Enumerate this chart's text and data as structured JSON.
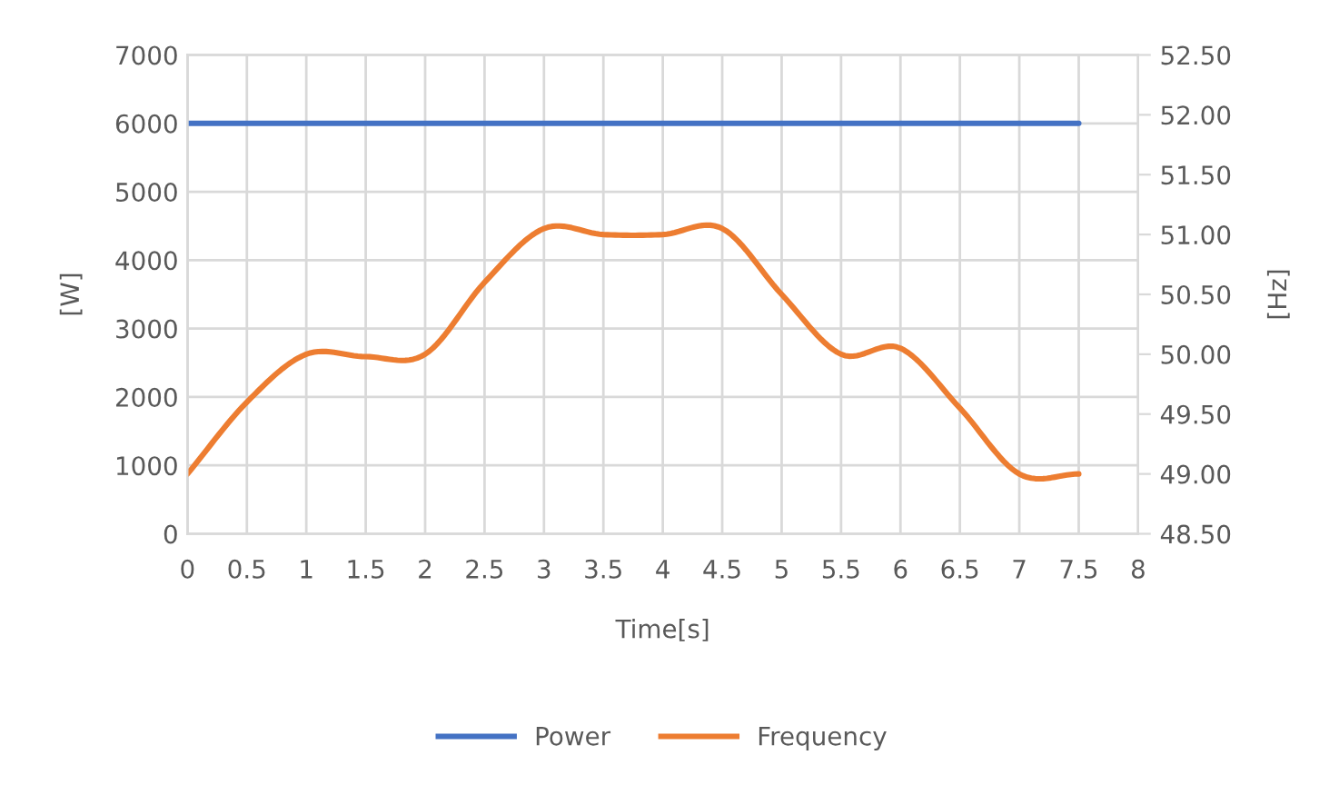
{
  "chart_data": {
    "type": "line",
    "xlabel": "Time[s]",
    "ylabel": "[W]",
    "y2label": "[Hz]",
    "x": [
      0,
      0.5,
      1,
      1.5,
      2,
      2.5,
      3,
      3.5,
      4,
      4.5,
      5,
      5.5,
      6,
      6.5,
      7,
      7.5
    ],
    "series": [
      {
        "name": "Power",
        "color": "#4472c4",
        "axis": "y",
        "values": [
          6000,
          6000,
          6000,
          6000,
          6000,
          6000,
          6000,
          6000,
          6000,
          6000,
          6000,
          6000,
          6000,
          6000,
          6000,
          6000
        ]
      },
      {
        "name": "Frequency",
        "color": "#ed7d31",
        "axis": "y2",
        "values": [
          49.0,
          49.6,
          50.0,
          49.98,
          50.0,
          50.6,
          51.05,
          51.0,
          51.0,
          51.05,
          50.5,
          50.0,
          50.05,
          49.55,
          49.0,
          49.0
        ]
      }
    ],
    "xlim": [
      0,
      8
    ],
    "xticks": [
      0,
      0.5,
      1,
      1.5,
      2,
      2.5,
      3,
      3.5,
      4,
      4.5,
      5,
      5.5,
      6,
      6.5,
      7,
      7.5,
      8
    ],
    "ylim": [
      0,
      7000
    ],
    "yticks": [
      0,
      1000,
      2000,
      3000,
      4000,
      5000,
      6000,
      7000
    ],
    "y2lim": [
      48.5,
      52.5
    ],
    "y2ticks": [
      {
        "value": 48.5,
        "label": "48.50"
      },
      {
        "value": 49.0,
        "label": "49.00"
      },
      {
        "value": 49.5,
        "label": "49.50"
      },
      {
        "value": 50.0,
        "label": "50.00"
      },
      {
        "value": 50.5,
        "label": "50.50"
      },
      {
        "value": 51.0,
        "label": "51.00"
      },
      {
        "value": 51.5,
        "label": "51.50"
      },
      {
        "value": 52.0,
        "label": "52.00"
      },
      {
        "value": 52.5,
        "label": "52.50"
      }
    ],
    "grid": true,
    "legend": "bottom",
    "marker": "none",
    "line_style": "solid"
  }
}
